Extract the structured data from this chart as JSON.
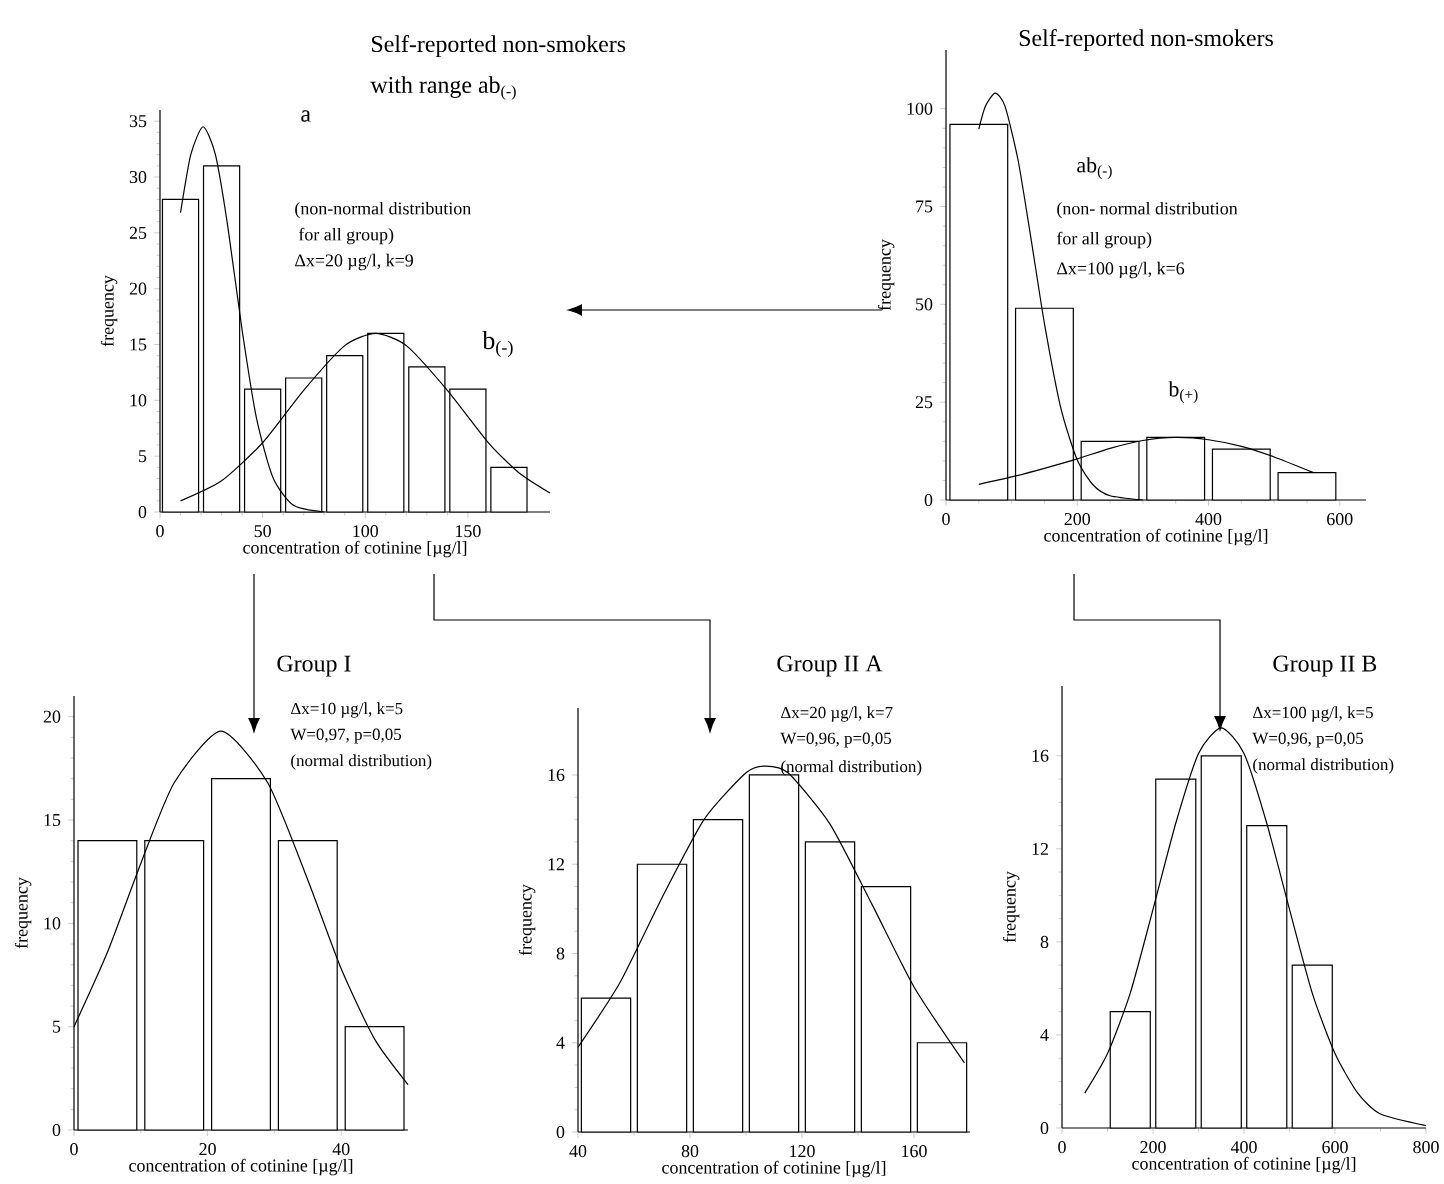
{
  "chart_data": [
    {
      "type": "histogram",
      "title": "Self-reported non-smokers",
      "subtitle": "with range ab$_{(-)}$",
      "xlabel": "concentration of cotinine [µg/l]",
      "ylabel": "frequency",
      "annotations": [
        "a",
        "(non-normal distribution",
        "for all group)",
        "Δx=20 µg/l, k=9",
        "b$_{(-)}$"
      ],
      "bins": [
        0,
        20,
        40,
        60,
        80,
        100,
        120,
        140,
        160,
        180
      ],
      "values": [
        28,
        31,
        11,
        12,
        14,
        16,
        13,
        11,
        4
      ],
      "series": [
        {
          "type": "line",
          "color": "#000000",
          "x": [
            10,
            15,
            21,
            27,
            33,
            40,
            47,
            55,
            65,
            80
          ],
          "values": [
            26.8,
            32.0,
            34.5,
            32.0,
            25.6,
            16.3,
            8.4,
            3.1,
            0.6,
            0
          ]
        },
        {
          "type": "line",
          "color": "#000000",
          "x": [
            10,
            30,
            50,
            70,
            90,
            105,
            120,
            140,
            160,
            175,
            190
          ],
          "values": [
            1.0,
            2.8,
            6.2,
            10.9,
            14.9,
            16,
            14.9,
            10.9,
            6.2,
            3.5,
            1.7
          ]
        }
      ],
      "xlim": [
        0,
        190
      ],
      "ylim": [
        0,
        36
      ],
      "xticks": [
        0,
        50,
        100,
        150
      ],
      "yticks": [
        0,
        5,
        10,
        15,
        20,
        25,
        30,
        35
      ]
    },
    {
      "type": "histogram",
      "title": "Self-reported non-smokers",
      "xlabel": "concentration of cotinine [µg/l]",
      "ylabel": "frequency",
      "annotations": [
        "ab$_{(-)}$",
        "(non- normal distribution",
        "for all group)",
        "Δx=100 µg/l, k=6",
        "b$_{(+)}$"
      ],
      "bins": [
        0,
        100,
        200,
        300,
        400,
        500,
        600
      ],
      "values": [
        96,
        49,
        15,
        16,
        13,
        7
      ],
      "series": [
        {
          "type": "line",
          "color": "#000000",
          "x": [
            50,
            60,
            75,
            90,
            110,
            130,
            150,
            175,
            200,
            225,
            250,
            300
          ],
          "values": [
            94.8,
            100.6,
            104,
            100.6,
            86.7,
            66.3,
            45.1,
            23.5,
            10.2,
            3.7,
            1.1,
            0
          ]
        },
        {
          "type": "line",
          "color": "#000000",
          "x": [
            50,
            100,
            150,
            200,
            250,
            300,
            350,
            400,
            450,
            500,
            560
          ],
          "values": [
            4,
            5.9,
            8.1,
            10.5,
            13.2,
            15.2,
            16,
            15.4,
            13.7,
            11,
            7
          ]
        }
      ],
      "xlim": [
        0,
        640
      ],
      "ylim": [
        0,
        115
      ],
      "xticks": [
        0,
        200,
        400,
        600
      ],
      "yticks": [
        0,
        25,
        50,
        75,
        100
      ]
    },
    {
      "type": "histogram",
      "title": "Group I",
      "xlabel": "concentration of cotinine [µg/l]",
      "ylabel": "frequency",
      "annotations": [
        "Δx=10 µg/l, k=5",
        "W=0,97, p=0,05",
        "(normal distribution)"
      ],
      "bins": [
        0,
        10,
        20,
        30,
        40,
        50
      ],
      "values": [
        14,
        14,
        17,
        14,
        5
      ],
      "series": [
        {
          "type": "line",
          "color": "#000000",
          "x": [
            0,
            5,
            10,
            15,
            22,
            29,
            35,
            40,
            45,
            50
          ],
          "values": [
            5.0,
            8.6,
            12.9,
            16.8,
            19.3,
            16.8,
            12.1,
            7.8,
            4.4,
            2.2
          ]
        }
      ],
      "xlim": [
        0,
        50
      ],
      "ylim": [
        0,
        21
      ],
      "xticks": [
        0,
        20,
        40
      ],
      "yticks": [
        0,
        5,
        10,
        15,
        20
      ]
    },
    {
      "type": "histogram",
      "title": "Group II A",
      "xlabel": "concentration of cotinine [µg/l]",
      "ylabel": "frequency",
      "annotations": [
        "Δx=20 µg/l, k=7",
        "W=0,96, p=0,05",
        "(normal distribution)"
      ],
      "bins": [
        40,
        60,
        80,
        100,
        120,
        140,
        160,
        180
      ],
      "values": [
        6,
        12,
        14,
        16,
        13,
        11,
        4
      ],
      "series": [
        {
          "type": "line",
          "color": "#000000",
          "x": [
            40,
            55,
            70,
            85,
            100,
            107,
            115,
            130,
            145,
            160,
            178
          ],
          "values": [
            3.8,
            6.7,
            10.5,
            14.0,
            16.1,
            16.4,
            16.1,
            13.8,
            10.2,
            6.5,
            3.1
          ]
        }
      ],
      "xlim": [
        40,
        180
      ],
      "ylim": [
        0,
        19
      ],
      "xticks": [
        40,
        80,
        120,
        160
      ],
      "yticks": [
        0,
        4,
        8,
        12,
        16
      ]
    },
    {
      "type": "histogram",
      "title": "Group II B",
      "xlabel": "concentration of cotinine [µg/l]",
      "ylabel": "frequency",
      "annotations": [
        "Δx=100 µg/l, k=5",
        "W=0,96, p=0,05",
        "(normal distribution)"
      ],
      "bins": [
        100,
        200,
        300,
        400,
        500,
        600
      ],
      "values": [
        5,
        15,
        16,
        13,
        7
      ],
      "series": [
        {
          "type": "line",
          "color": "#000000",
          "x": [
            50,
            100,
            150,
            200,
            250,
            300,
            350,
            400,
            450,
            500,
            550,
            600,
            650,
            700,
            800
          ],
          "values": [
            1.5,
            3.2,
            5.8,
            9.4,
            13.1,
            16.1,
            17.2,
            16.1,
            13.1,
            9.4,
            5.8,
            3.2,
            1.5,
            0.6,
            0.1
          ]
        }
      ],
      "xlim": [
        0,
        800
      ],
      "ylim": [
        0,
        19
      ],
      "xticks": [
        0,
        200,
        400,
        600,
        800
      ],
      "yticks": [
        0,
        4,
        8,
        12,
        16
      ]
    }
  ]
}
